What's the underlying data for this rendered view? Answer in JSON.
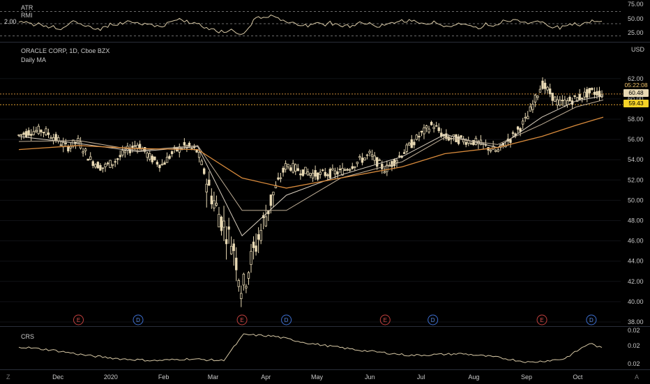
{
  "top_pane": {
    "indicator_name": "ATR",
    "sub_name": "RMI",
    "left_value": "2.00",
    "scale": [
      "75.00",
      "50.00",
      "25.00"
    ]
  },
  "main_pane": {
    "title": "ORACLE CORP, 1D, Cboe BZX",
    "ma_label": "Daily MA",
    "currency": "USD",
    "price_tags": {
      "countdown": "05:22:08",
      "last": "60.48",
      "marked": "59.43"
    },
    "event_markers": [
      "E",
      "D",
      "E",
      "D",
      "E",
      "D",
      "E",
      "D"
    ]
  },
  "bottom_pane": {
    "indicator_name": "CRS",
    "scale": [
      "0.02",
      "0.02",
      "0.02"
    ]
  },
  "bottom_bar": {
    "left_icon": "Z",
    "right_icon": "A"
  },
  "chart_data": {
    "type": "candlestick",
    "title": "ORACLE CORP, 1D, Cboe BZX",
    "ylabel": "USD",
    "ylim": [
      37,
      64
    ],
    "x_ticks": [
      "Dec",
      "2020",
      "Feb",
      "Mar",
      "Apr",
      "May",
      "Jun",
      "Jul",
      "Aug",
      "Sep",
      "Oct"
    ],
    "y_ticks": [
      38,
      40,
      42,
      44,
      46,
      48,
      50,
      52,
      54,
      56,
      58,
      60,
      62
    ],
    "close_path": [
      [
        "Nov 8",
        56.4
      ],
      [
        "Nov 15",
        56.8
      ],
      [
        "Nov 22",
        56.9
      ],
      [
        "Nov 29",
        56.2
      ],
      [
        "Dec 6",
        55.2
      ],
      [
        "Dec 13",
        55.8
      ],
      [
        "Dec 20",
        54.0
      ],
      [
        "Dec 27",
        53.2
      ],
      [
        "Jan 3",
        53.8
      ],
      [
        "Jan 10",
        54.8
      ],
      [
        "Jan 17",
        55.6
      ],
      [
        "Jan 24",
        54.2
      ],
      [
        "Jan 31",
        53.5
      ],
      [
        "Feb 7",
        54.8
      ],
      [
        "Feb 14",
        55.4
      ],
      [
        "Feb 21",
        54.8
      ],
      [
        "Feb 28",
        51.0
      ],
      [
        "Mar 6",
        48.0
      ],
      [
        "Mar 13",
        45.5
      ],
      [
        "Mar 18",
        41.0
      ],
      [
        "Mar 23",
        44.0
      ],
      [
        "Mar 30",
        47.5
      ],
      [
        "Apr 6",
        51.0
      ],
      [
        "Apr 13",
        53.5
      ],
      [
        "Apr 20",
        53.0
      ],
      [
        "May 1",
        52.5
      ],
      [
        "May 15",
        52.8
      ],
      [
        "Jun 1",
        54.5
      ],
      [
        "Jun 10",
        53.0
      ],
      [
        "Jun 20",
        54.6
      ],
      [
        "Jul 1",
        56.5
      ],
      [
        "Jul 8",
        57.5
      ],
      [
        "Jul 15",
        56.2
      ],
      [
        "Aug 1",
        55.8
      ],
      [
        "Aug 15",
        54.8
      ],
      [
        "Aug 25",
        56.5
      ],
      [
        "Sep 1",
        58.0
      ],
      [
        "Sep 10",
        61.5
      ],
      [
        "Sep 20",
        59.5
      ],
      [
        "Sep 30",
        60.0
      ],
      [
        "Oct 9",
        60.7
      ],
      [
        "Oct 16",
        60.5
      ]
    ],
    "moving_averages": [
      {
        "points": [
          [
            "Nov 8",
            56.3
          ],
          [
            "Dec 13",
            55.6
          ],
          [
            "Jan 17",
            54.8
          ],
          [
            "Feb 21",
            55.3
          ],
          [
            "Mar 18",
            46.5
          ],
          [
            "Apr 13",
            50.5
          ],
          [
            "May 15",
            52.5
          ],
          [
            "Jun 20",
            54.3
          ],
          [
            "Jul 15",
            56.5
          ],
          [
            "Aug 15",
            55.2
          ],
          [
            "Sep 10",
            58.2
          ],
          [
            "Sep 30",
            59.8
          ],
          [
            "Oct 16",
            60.3
          ]
        ]
      },
      {
        "points": [
          [
            "Nov 8",
            55.8
          ],
          [
            "Dec 13",
            55.9
          ],
          [
            "Jan 17",
            54.9
          ],
          [
            "Feb 21",
            55.4
          ],
          [
            "Mar 18",
            49.0
          ],
          [
            "Apr 13",
            49.0
          ],
          [
            "May 15",
            52.2
          ],
          [
            "Jun 20",
            53.8
          ],
          [
            "Jul 15",
            56.2
          ],
          [
            "Aug 15",
            55.5
          ],
          [
            "Sep 10",
            57.5
          ],
          [
            "Sep 30",
            59.2
          ],
          [
            "Oct 16",
            59.9
          ]
        ]
      },
      {
        "points": [
          [
            "Nov 8",
            55.0
          ],
          [
            "Dec 13",
            55.4
          ],
          [
            "Jan 17",
            55.1
          ],
          [
            "Feb 21",
            55.0
          ],
          [
            "Mar 18",
            52.2
          ],
          [
            "Apr 13",
            51.2
          ],
          [
            "May 15",
            52.2
          ],
          [
            "Jun 20",
            53.3
          ],
          [
            "Jul 15",
            54.6
          ],
          [
            "Aug 15",
            55.2
          ],
          [
            "Sep 10",
            56.3
          ],
          [
            "Sep 30",
            57.4
          ],
          [
            "Oct 16",
            58.2
          ]
        ]
      }
    ],
    "horizontal_lines": [
      60.48,
      59.43
    ],
    "rmi": {
      "ylim": [
        20,
        80
      ],
      "levels": [
        75,
        50,
        25
      ]
    },
    "crs": {
      "ylim": [
        0.0,
        1.0
      ]
    }
  }
}
